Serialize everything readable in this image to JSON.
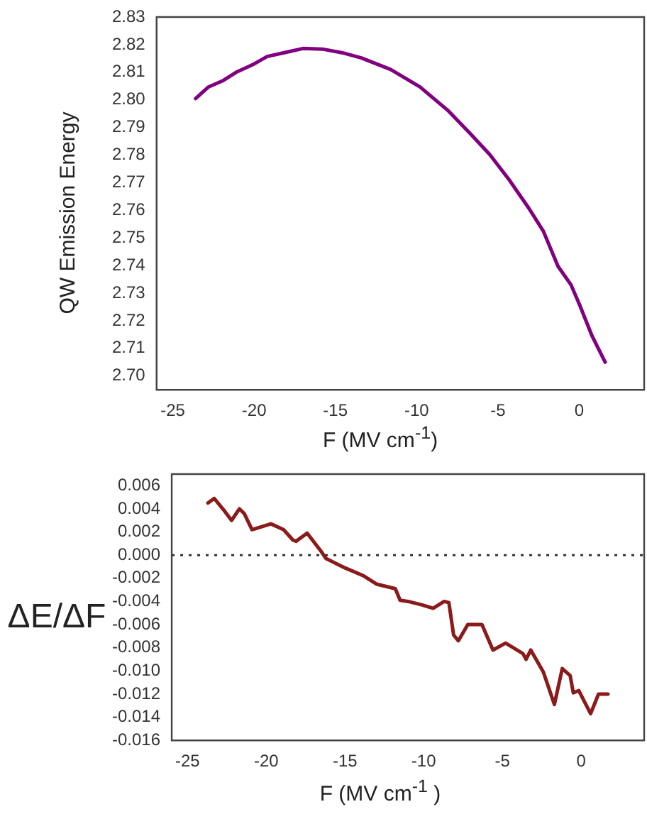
{
  "chart_data": [
    {
      "type": "line",
      "ylabel": "QW Emission Energy",
      "xlabel": "F (MV cm$^{-1}$)",
      "xlim": [
        -26,
        4
      ],
      "xticks": [
        -25,
        -20,
        -15,
        -10,
        -5,
        0
      ],
      "ylim": [
        2.695,
        2.83
      ],
      "yticks": [
        {
          "value": 2.7,
          "label": "2.70"
        },
        {
          "value": 2.71,
          "label": "2.71"
        },
        {
          "value": 2.72,
          "label": "2.72"
        },
        {
          "value": 2.73,
          "label": "2.73"
        },
        {
          "value": 2.74,
          "label": "2.74"
        },
        {
          "value": 2.75,
          "label": "2.75"
        },
        {
          "value": 2.76,
          "label": "2.76"
        },
        {
          "value": 2.77,
          "label": "2.77"
        },
        {
          "value": 2.78,
          "label": "2.78"
        },
        {
          "value": 2.79,
          "label": "2.79"
        },
        {
          "value": 2.8,
          "label": "2.80"
        },
        {
          "value": 2.81,
          "label": "2.81"
        },
        {
          "value": 2.82,
          "label": "2.82"
        },
        {
          "value": 2.83,
          "label": "2.83"
        }
      ],
      "grid": false,
      "legend": false,
      "marker": "none",
      "line_style": "solid",
      "series": [
        {
          "color": "#800080",
          "x": [
            -23.6,
            -22.8,
            -21.9,
            -21.1,
            -20.1,
            -19.2,
            -17.9,
            -17.0,
            -15.8,
            -14.6,
            -13.4,
            -11.6,
            -9.8,
            -8.1,
            -6.7,
            -5.5,
            -4.3,
            -3.1,
            -2.2,
            -1.3,
            -0.5,
            0.06,
            0.8,
            1.6
          ],
          "values": [
            2.8005,
            2.8047,
            2.807,
            2.81,
            2.8127,
            2.8157,
            2.8174,
            2.8186,
            2.8184,
            2.8171,
            2.8152,
            2.811,
            2.8047,
            2.7963,
            2.7878,
            2.7802,
            2.771,
            2.7608,
            2.7524,
            2.7397,
            2.733,
            2.7253,
            2.7144,
            2.705
          ]
        }
      ]
    },
    {
      "type": "line",
      "ylabel": "ΔE/ΔF",
      "xlabel": "F (MV cm$^{-1}$ )",
      "xlim": [
        -26,
        4
      ],
      "xticks": [
        -25,
        -20,
        -15,
        -10,
        -5,
        0
      ],
      "ylim": [
        -0.016,
        0.007
      ],
      "yticks": [
        {
          "value": -0.016,
          "label": "-0.016"
        },
        {
          "value": -0.014,
          "label": "-0.014"
        },
        {
          "value": -0.012,
          "label": "-0.012"
        },
        {
          "value": -0.01,
          "label": "-0.010"
        },
        {
          "value": -0.008,
          "label": "-0.008"
        },
        {
          "value": -0.006,
          "label": "-0.006"
        },
        {
          "value": -0.004,
          "label": "-0.004"
        },
        {
          "value": -0.002,
          "label": "-0.002"
        },
        {
          "value": 0,
          "label": "0.000"
        },
        {
          "value": 0.002,
          "label": "0.002"
        },
        {
          "value": 0.004,
          "label": "0.004"
        },
        {
          "value": 0.006,
          "label": "0.006"
        }
      ],
      "grid": false,
      "legend": false,
      "marker": "none",
      "line_style": "solid",
      "ref_lines": [
        {
          "axis": "y",
          "value": 0,
          "label": null,
          "color": "#333333",
          "line_style": "dotted"
        }
      ],
      "series": [
        {
          "color": "#8b1a1a",
          "x": [
            -23.7,
            -23.3,
            -22.7,
            -22.2,
            -21.7,
            -21.4,
            -20.9,
            -19.7,
            -18.9,
            -18.3,
            -18.1,
            -17.4,
            -16.5,
            -16.2,
            -15.0,
            -13.8,
            -13.0,
            -11.8,
            -11.5,
            -11.0,
            -10.1,
            -9.4,
            -8.7,
            -8.4,
            -8.1,
            -7.8,
            -7.2,
            -6.3,
            -5.6,
            -4.8,
            -3.7,
            -3.5,
            -3.2,
            -2.4,
            -1.7,
            -1.2,
            -0.7,
            -0.5,
            -0.15,
            0.6,
            1.1,
            1.7
          ],
          "values": [
            0.0045,
            0.0049,
            0.0039,
            0.003,
            0.004,
            0.0036,
            0.0022,
            0.0027,
            0.0022,
            0.0013,
            0.0012,
            0.0019,
            0.0003,
            -0.0003,
            -0.0011,
            -0.0018,
            -0.0025,
            -0.0029,
            -0.0039,
            -0.004,
            -0.0043,
            -0.0046,
            -0.004,
            -0.0041,
            -0.0069,
            -0.0074,
            -0.006,
            -0.006,
            -0.0082,
            -0.0076,
            -0.0085,
            -0.009,
            -0.0082,
            -0.0101,
            -0.0129,
            -0.0098,
            -0.0104,
            -0.0119,
            -0.0117,
            -0.0137,
            -0.012,
            -0.012
          ]
        }
      ]
    }
  ]
}
